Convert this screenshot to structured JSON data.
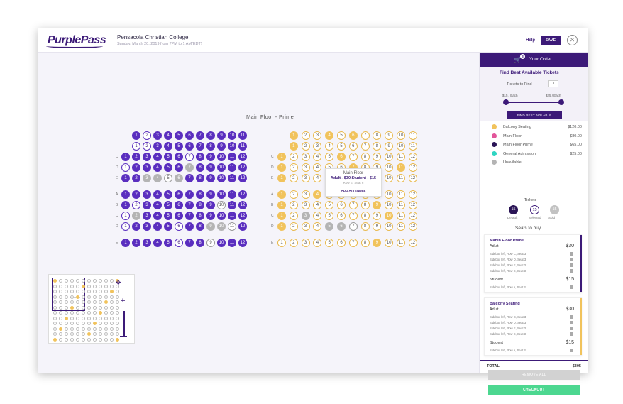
{
  "header": {
    "logo": "PurplePass",
    "event_title": "Pensacola Christian College",
    "event_date": "Sunday, March 20, 2019 from 7PM to 1 AM(EDT)",
    "help": "Help",
    "save": "SAVE",
    "close": "✕"
  },
  "map": {
    "section_title": "Main Floor - Prime",
    "tooltip": {
      "title": "Main Floor",
      "price": "Adult - $30 Student - $15",
      "location": "Row E, Seat 6",
      "button": "ADD ATTENDEE"
    },
    "minimap_label": "Main Floor"
  },
  "order": {
    "title": "Your Order",
    "count": "3",
    "find_title": "Find Best Available Tickets",
    "tickets_to_find_label": "Tickets to Find",
    "tickets_to_find_value": "1",
    "price_min": "$15 / Each",
    "price_max": "$25 / Each",
    "find_button": "FIND BEST AVILABLE",
    "legend": [
      {
        "name": "Balcony Seating",
        "price": "$120.00",
        "color": "#f1c35c"
      },
      {
        "name": "Main Floor",
        "price": "$80.00",
        "color": "#e2559a"
      },
      {
        "name": "Main Floor Prime",
        "price": "$65.00",
        "color": "#2a1456"
      },
      {
        "name": "General Admission",
        "price": "$25.00",
        "color": "#2fd5c2"
      },
      {
        "name": "Unavilable",
        "price": "",
        "color": "#b4b4b4"
      }
    ],
    "tickets_title": "Tickets",
    "tickets": [
      {
        "count": "15",
        "label": "Default"
      },
      {
        "count": "15",
        "label": "Selected"
      },
      {
        "count": "15",
        "label": "Sold"
      }
    ],
    "seats_to_buy": "Seats to buy",
    "cards": [
      {
        "name": "Manin Floor Prime",
        "color": "#3c1a78",
        "groups": [
          {
            "type": "Adult",
            "price": "$30",
            "seats": [
              "Sidebox left, Row C, Seat 3",
              "Sidebox left, Row D, Seat 3",
              "Sidebox left, Row E, Seat 3",
              "Sidebox left, Row E, Seat 3"
            ]
          },
          {
            "type": "Student",
            "price": "$15",
            "seats": [
              "Sidebox left, Row A, Seat 3"
            ]
          }
        ]
      },
      {
        "name": "Balcony Seating",
        "color": "#f1c35c",
        "groups": [
          {
            "type": "Adult",
            "price": "$30",
            "seats": [
              "Sidebox left, Row C, Seat 3",
              "Sidebox left, Row D, Seat 3",
              "Sidebox left, Row E, Seat 3",
              "Sidebox left, Row E, Seat 3"
            ]
          },
          {
            "type": "Student",
            "price": "$15",
            "seats": [
              "Sidebox left, Row A, Seat 3"
            ]
          }
        ]
      }
    ],
    "total_label": "TOTAL",
    "total_value": "$305",
    "remove_all": "REMOVE ALL",
    "checkout": "CHECKOUT"
  }
}
